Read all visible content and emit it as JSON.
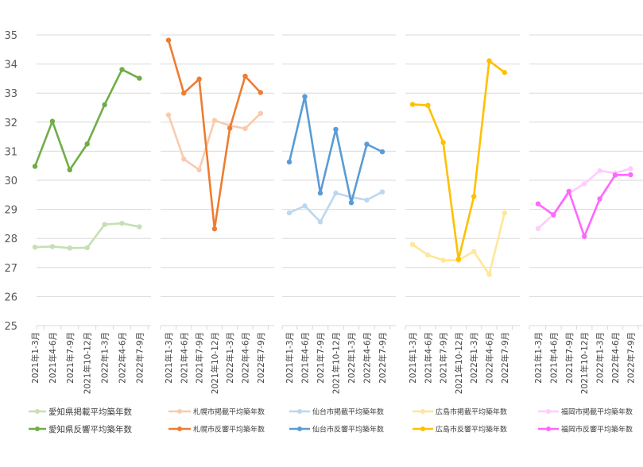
{
  "chart_data": {
    "type": "line",
    "y_axis": {
      "min": 25,
      "max": 35,
      "step": 1,
      "grid": true
    },
    "categories": [
      "2021年1-3月",
      "2021年4-6月",
      "2021年7-9月",
      "2021年10-12月",
      "2022年1-3月",
      "2022年4-6月",
      "2022年7-9月"
    ],
    "panels": [
      {
        "series": [
          {
            "name": "愛知県掲載平均築年数",
            "color": "#c5e0b4",
            "values": [
              27.7,
              27.72,
              27.67,
              27.68,
              28.48,
              28.52,
              28.4
            ]
          },
          {
            "name": "愛知県反響平均築年数",
            "color": "#70ad47",
            "values": [
              30.48,
              32.03,
              30.36,
              31.25,
              32.6,
              33.81,
              33.51
            ]
          }
        ]
      },
      {
        "series": [
          {
            "name": "札幌市掲載平均築年数",
            "color": "#f8cbad",
            "values": [
              32.25,
              30.73,
              30.36,
              32.06,
              31.88,
              31.78,
              32.3
            ]
          },
          {
            "name": "札幌市反響平均築年数",
            "color": "#ed7d31",
            "values": [
              34.82,
              33.0,
              33.48,
              28.33,
              31.79,
              33.58,
              33.02
            ]
          }
        ]
      },
      {
        "series": [
          {
            "name": "仙台市掲載平均築年数",
            "color": "#bdd7ee",
            "values": [
              28.88,
              29.12,
              28.57,
              29.56,
              29.42,
              29.32,
              29.6
            ]
          },
          {
            "name": "仙台市反響平均築年数",
            "color": "#5b9bd5",
            "values": [
              30.63,
              32.88,
              29.56,
              31.75,
              29.23,
              31.24,
              30.98
            ]
          }
        ]
      },
      {
        "series": [
          {
            "name": "広島市掲載平均築年数",
            "color": "#ffe699",
            "values": [
              27.79,
              27.43,
              27.25,
              27.25,
              27.55,
              26.76,
              28.88
            ]
          },
          {
            "name": "広島市反響平均築年数",
            "color": "#ffc000",
            "values": [
              32.61,
              32.58,
              31.3,
              27.28,
              29.44,
              34.11,
              33.71
            ]
          }
        ]
      },
      {
        "series": [
          {
            "name": "福岡市掲載平均築年数",
            "color": "#ffccff",
            "values": [
              28.34,
              28.83,
              29.55,
              29.88,
              30.33,
              30.25,
              30.4
            ]
          },
          {
            "name": "福岡市反響平均築年数",
            "color": "#ff66ff",
            "values": [
              29.19,
              28.81,
              29.62,
              28.07,
              29.36,
              30.18,
              30.19
            ]
          }
        ]
      }
    ]
  }
}
